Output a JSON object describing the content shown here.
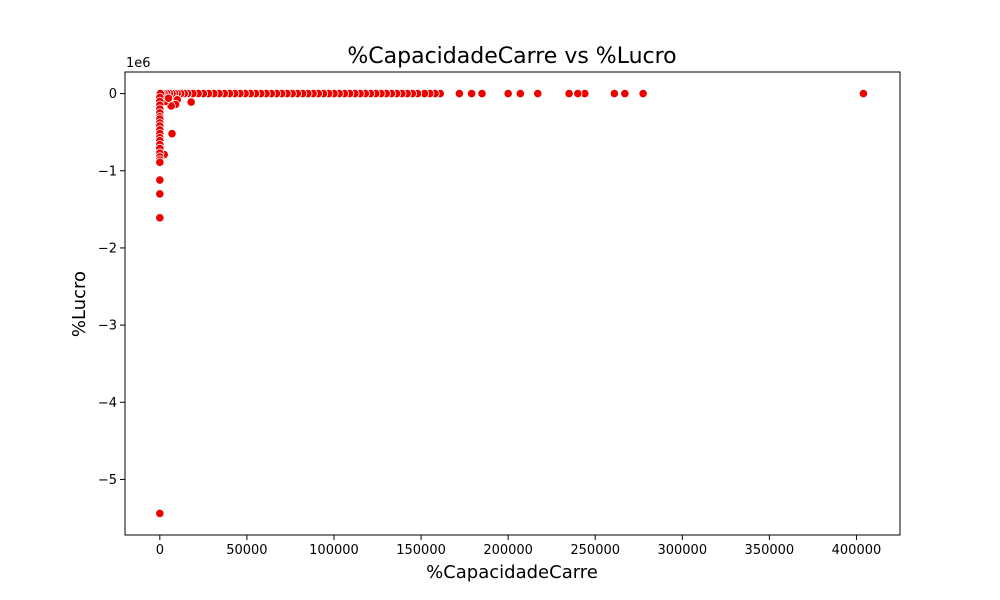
{
  "chart_data": {
    "type": "scatter",
    "title": "%CapacidadeCarre vs %Lucro",
    "xlabel": "%CapacidadeCarre",
    "ylabel": "%Lucro",
    "y_offset_label": "1e6",
    "xlim": [
      -20000,
      425000
    ],
    "ylim": [
      -5.72,
      0.28
    ],
    "xticks": [
      0,
      50000,
      100000,
      150000,
      200000,
      250000,
      300000,
      350000,
      400000
    ],
    "xtick_labels": [
      "0",
      "50000",
      "100000",
      "150000",
      "200000",
      "250000",
      "300000",
      "350000",
      "400000"
    ],
    "yticks": [
      0,
      -1,
      -2,
      -3,
      -4,
      -5
    ],
    "ytick_labels": [
      "0",
      "−1",
      "−2",
      "−3",
      "−4",
      "−5"
    ],
    "y_scale_note": "values in units of 1e6",
    "grid": false,
    "marker_color": "#ee0000",
    "points": [
      [
        404000,
        0
      ],
      [
        277500,
        0
      ],
      [
        267000,
        0
      ],
      [
        261000,
        0
      ],
      [
        244000,
        0
      ],
      [
        240000,
        0
      ],
      [
        235000,
        0
      ],
      [
        217000,
        0
      ],
      [
        207000,
        0
      ],
      [
        200000,
        0
      ],
      [
        185000,
        0
      ],
      [
        179000,
        0
      ],
      [
        172000,
        0
      ],
      [
        161000,
        0
      ],
      [
        158000,
        0
      ],
      [
        155000,
        0
      ],
      [
        152000,
        0
      ],
      [
        148000,
        0
      ],
      [
        145000,
        0
      ],
      [
        142000,
        0
      ],
      [
        139000,
        0
      ],
      [
        136000,
        0
      ],
      [
        133000,
        0
      ],
      [
        130000,
        0
      ],
      [
        127000,
        0
      ],
      [
        124000,
        0
      ],
      [
        121000,
        0
      ],
      [
        118000,
        0
      ],
      [
        115000,
        0
      ],
      [
        112000,
        0
      ],
      [
        109000,
        0
      ],
      [
        106000,
        0
      ],
      [
        103000,
        0
      ],
      [
        100000,
        0
      ],
      [
        97000,
        0
      ],
      [
        94000,
        0
      ],
      [
        91000,
        0
      ],
      [
        88000,
        0
      ],
      [
        85000,
        0
      ],
      [
        82000,
        0
      ],
      [
        79000,
        0
      ],
      [
        76000,
        0
      ],
      [
        73000,
        0
      ],
      [
        70000,
        0
      ],
      [
        67000,
        0
      ],
      [
        64000,
        0
      ],
      [
        61000,
        0
      ],
      [
        58000,
        0
      ],
      [
        55000,
        0
      ],
      [
        52000,
        0
      ],
      [
        49000,
        0
      ],
      [
        46000,
        0
      ],
      [
        43000,
        0
      ],
      [
        40000,
        0
      ],
      [
        37000,
        0
      ],
      [
        34000,
        0
      ],
      [
        31000,
        0
      ],
      [
        28000,
        0
      ],
      [
        25000,
        0
      ],
      [
        22000,
        0
      ],
      [
        19000,
        0
      ],
      [
        16000,
        0
      ],
      [
        14000,
        0
      ],
      [
        12000,
        0
      ],
      [
        10000,
        0
      ],
      [
        8500,
        0
      ],
      [
        7000,
        0
      ],
      [
        5500,
        0
      ],
      [
        4000,
        0
      ],
      [
        2500,
        0
      ],
      [
        1200,
        0
      ],
      [
        300,
        0
      ],
      [
        10000,
        -0.08
      ],
      [
        9000,
        -0.14
      ],
      [
        6500,
        -0.16
      ],
      [
        18000,
        -0.11
      ],
      [
        7000,
        -0.52
      ],
      [
        2500,
        -0.79
      ],
      [
        3200,
        -0.1
      ],
      [
        5000,
        -0.06
      ],
      [
        0,
        -0.05
      ],
      [
        0,
        -0.1
      ],
      [
        0,
        -0.15
      ],
      [
        0,
        -0.2
      ],
      [
        0,
        -0.25
      ],
      [
        0,
        -0.3
      ],
      [
        0,
        -0.33
      ],
      [
        0,
        -0.38
      ],
      [
        0,
        -0.42
      ],
      [
        0,
        -0.47
      ],
      [
        0,
        -0.52
      ],
      [
        0,
        -0.57
      ],
      [
        0,
        -0.61
      ],
      [
        0,
        -0.66
      ],
      [
        0,
        -0.71
      ],
      [
        0,
        -0.77
      ],
      [
        0,
        -0.82
      ],
      [
        0,
        -0.86
      ],
      [
        0,
        -0.89
      ],
      [
        0,
        -1.12
      ],
      [
        0,
        -1.3
      ],
      [
        0,
        -1.61
      ],
      [
        0,
        -5.44
      ]
    ]
  }
}
